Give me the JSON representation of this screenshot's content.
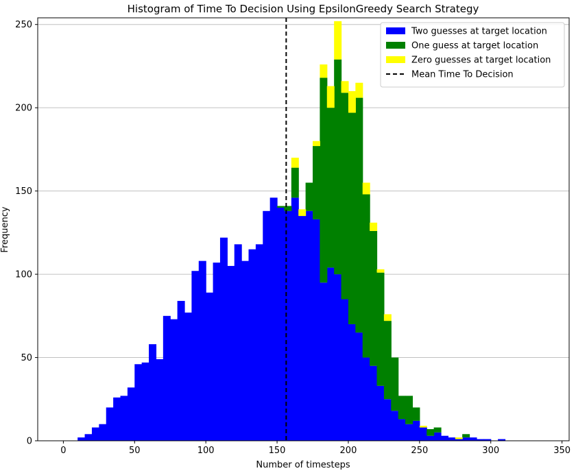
{
  "chart_data": {
    "type": "bar",
    "title": "Histogram of Time To Decision Using EpsilonGreedy Search Strategy",
    "xlabel": "Number of timesteps",
    "ylabel": "Frequency",
    "xlim": [
      -18,
      355
    ],
    "ylim": [
      0,
      254
    ],
    "xticks": [
      0,
      50,
      100,
      150,
      200,
      250,
      300,
      350
    ],
    "yticks": [
      0,
      50,
      100,
      150,
      200,
      250
    ],
    "grid": "horizontal",
    "legend_position": "top-right",
    "bin_width": 5,
    "stacked": true,
    "series": [
      {
        "name": "Two guesses at target location",
        "color": "#0000ff",
        "bins": [
          [
            10,
            2
          ],
          [
            15,
            4
          ],
          [
            20,
            8
          ],
          [
            25,
            10
          ],
          [
            30,
            20
          ],
          [
            35,
            26
          ],
          [
            40,
            27
          ],
          [
            45,
            32
          ],
          [
            50,
            46
          ],
          [
            55,
            47
          ],
          [
            60,
            58
          ],
          [
            65,
            49
          ],
          [
            70,
            75
          ],
          [
            75,
            73
          ],
          [
            80,
            84
          ],
          [
            85,
            77
          ],
          [
            90,
            102
          ],
          [
            95,
            108
          ],
          [
            100,
            89
          ],
          [
            105,
            107
          ],
          [
            110,
            122
          ],
          [
            115,
            105
          ],
          [
            120,
            118
          ],
          [
            125,
            108
          ],
          [
            130,
            115
          ],
          [
            135,
            118
          ],
          [
            140,
            138
          ],
          [
            145,
            146
          ],
          [
            150,
            140
          ],
          [
            155,
            138
          ],
          [
            160,
            146
          ],
          [
            165,
            135
          ],
          [
            170,
            138
          ],
          [
            175,
            133
          ],
          [
            180,
            95
          ],
          [
            185,
            104
          ],
          [
            190,
            100
          ],
          [
            195,
            85
          ],
          [
            200,
            70
          ],
          [
            205,
            65
          ],
          [
            210,
            50
          ],
          [
            215,
            45
          ],
          [
            220,
            33
          ],
          [
            225,
            25
          ],
          [
            230,
            18
          ],
          [
            235,
            13
          ],
          [
            240,
            10
          ],
          [
            245,
            12
          ],
          [
            250,
            8
          ],
          [
            255,
            3
          ],
          [
            260,
            5
          ],
          [
            265,
            3
          ],
          [
            270,
            2
          ],
          [
            275,
            1
          ],
          [
            280,
            2
          ],
          [
            285,
            2
          ],
          [
            290,
            1
          ],
          [
            295,
            1
          ],
          [
            305,
            1
          ]
        ]
      },
      {
        "name": "One guess at target location",
        "color": "#008000",
        "bins": [
          [
            145,
            0
          ],
          [
            150,
            1
          ],
          [
            155,
            3
          ],
          [
            160,
            18
          ],
          [
            165,
            0
          ],
          [
            170,
            17
          ],
          [
            175,
            44
          ],
          [
            180,
            123
          ],
          [
            185,
            96
          ],
          [
            190,
            129
          ],
          [
            195,
            124
          ],
          [
            200,
            127
          ],
          [
            205,
            141
          ],
          [
            210,
            98
          ],
          [
            215,
            81
          ],
          [
            220,
            68
          ],
          [
            225,
            47
          ],
          [
            230,
            32
          ],
          [
            235,
            14
          ],
          [
            240,
            17
          ],
          [
            245,
            8
          ],
          [
            250,
            0
          ],
          [
            255,
            4
          ],
          [
            260,
            3
          ],
          [
            265,
            0
          ],
          [
            275,
            0
          ],
          [
            280,
            2
          ]
        ]
      },
      {
        "name": "Zero guesses at target location",
        "color": "#ffff00",
        "bins": [
          [
            160,
            6
          ],
          [
            165,
            4
          ],
          [
            170,
            0
          ],
          [
            175,
            3
          ],
          [
            180,
            8
          ],
          [
            185,
            13
          ],
          [
            190,
            23
          ],
          [
            195,
            7
          ],
          [
            200,
            13
          ],
          [
            205,
            9
          ],
          [
            210,
            7
          ],
          [
            215,
            5
          ],
          [
            220,
            2
          ],
          [
            225,
            4
          ],
          [
            250,
            1
          ],
          [
            275,
            1
          ]
        ]
      }
    ],
    "annotations": [
      {
        "kind": "vline",
        "name": "Mean Time To Decision",
        "x": 156.4,
        "style": "dashed",
        "color": "#000000"
      }
    ],
    "legend": [
      {
        "label": "Two guesses at target location",
        "color": "#0000ff",
        "kind": "patch"
      },
      {
        "label": "One guess at target location",
        "color": "#008000",
        "kind": "patch"
      },
      {
        "label": "Zero guesses at target location",
        "color": "#ffff00",
        "kind": "patch"
      },
      {
        "label": "Mean Time To Decision",
        "color": "#000000",
        "kind": "dashed-line"
      }
    ]
  }
}
